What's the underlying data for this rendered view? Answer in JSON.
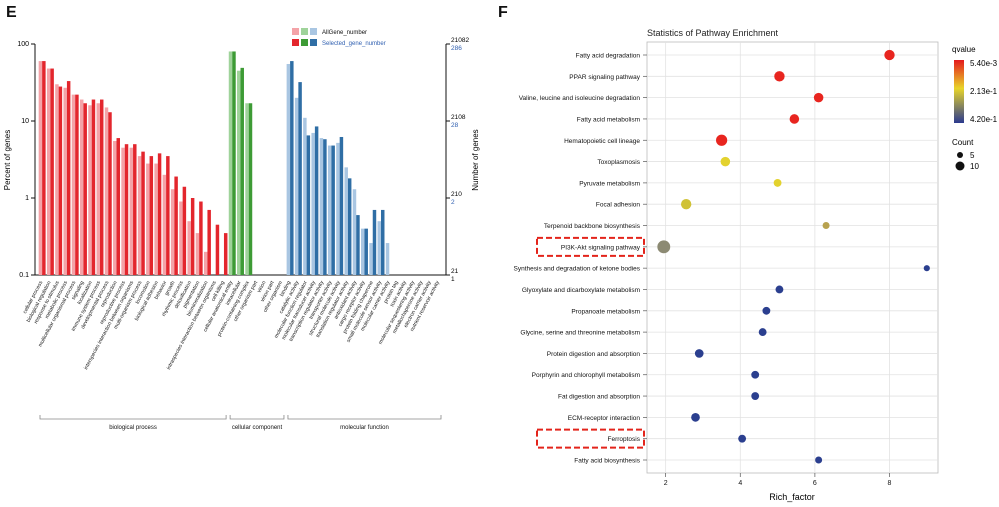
{
  "panel_labels": [
    "E",
    "F"
  ],
  "chart_data": [
    {
      "type": "bar",
      "title": "",
      "ylabel_left": "Percent of genes",
      "ylabel_right": "Number of genes",
      "y_scale": "log",
      "ylim": [
        0.1,
        100
      ],
      "yticks_left": [
        "100",
        "10",
        "1",
        "0.1"
      ],
      "yticks_right_all": [
        "21082",
        "2108",
        "210",
        "21"
      ],
      "yticks_right_selected": [
        "286",
        "28",
        "2",
        "1"
      ],
      "legend": {
        "all_label": "AllGene_number",
        "selected_label": "Selected_gene_number",
        "colors_all": [
          "#f4a3a8",
          "#9fd39a",
          "#a9c6e2"
        ],
        "colors_selected": [
          "#e3262d",
          "#3d9b35",
          "#2f6ea5"
        ]
      },
      "group_colors": {
        "biological process": {
          "all": "#f4a3a8",
          "selected": "#e3262d"
        },
        "cellular component": {
          "all": "#9fd39a",
          "selected": "#3d9b35"
        },
        "molecular function": {
          "all": "#a9c6e2",
          "selected": "#2f6ea5"
        }
      },
      "groups": [
        {
          "name": "biological process",
          "first": 0,
          "last": 22
        },
        {
          "name": "cellular component",
          "first": 23,
          "last": 29
        },
        {
          "name": "molecular function",
          "first": 30,
          "last": 48
        }
      ],
      "categories": [
        "cellular process",
        "biological regulation",
        "response to stimulus",
        "metabolic process",
        "multicellular organismal process",
        "signaling",
        "localization",
        "immune system process",
        "developmental process",
        "reproduction",
        "reproductive process",
        "interspecies interaction between organisms",
        "multi-organism process",
        "locomotion",
        "biological adhesion",
        "behavior",
        "growth",
        "rhythmic process",
        "detoxification",
        "pigmentation",
        "biomineralization",
        "intraspecies interaction between organisms",
        "cell killing",
        "cellular anatomical entity",
        "intracellular",
        "protein-containing complex",
        "other organism part",
        "virion",
        "virion part",
        "other organism",
        "binding",
        "catalytic activity",
        "molecular function regulator",
        "molecular transducer activity",
        "transcription regulator activity",
        "transporter activity",
        "structural molecule activity",
        "translation regulator activity",
        "antioxidant activity",
        "cargo receptor activity",
        "protein folding chaperone",
        "small molecule sensor activity",
        "molecular carrier activity",
        "protein tag",
        "toxin activity",
        "molecular sequestering activity",
        "metallochaperone activity",
        "electron carrier activity",
        "nutrient reservoir activity"
      ],
      "series": [
        {
          "name": "AllGene_number",
          "values": [
            60,
            48,
            30,
            27,
            22,
            19,
            16,
            17,
            15,
            5.5,
            4.5,
            4.5,
            3.5,
            2.8,
            2.8,
            2.0,
            1.3,
            0.9,
            0.5,
            0.35,
            0.2,
            0.1,
            0.1,
            80,
            45,
            17,
            0,
            0,
            0,
            0,
            55,
            20,
            11,
            7,
            6,
            4.8,
            5.2,
            2.5,
            1.3,
            0.4,
            0.26,
            0.5,
            0.26,
            0,
            0,
            0,
            0,
            0,
            0
          ]
        },
        {
          "name": "Selected_gene_number",
          "values": [
            60,
            48,
            28,
            33,
            22,
            17,
            19,
            19,
            13,
            6,
            5,
            5,
            4,
            3.5,
            3.8,
            3.5,
            1.9,
            1.4,
            1.0,
            0.9,
            0.7,
            0.45,
            0.35,
            80,
            49,
            17,
            0,
            0,
            0,
            0,
            60,
            32,
            6.5,
            8.5,
            5.8,
            4.8,
            6.2,
            1.8,
            0.6,
            0.4,
            0.7,
            0.7,
            0,
            0,
            0,
            0,
            0,
            0,
            0
          ]
        }
      ]
    },
    {
      "type": "scatter",
      "title": "Statistics of Pathway Enrichment",
      "xlabel": "Rich_factor",
      "ylabel": "",
      "xlim": [
        1.5,
        9.3
      ],
      "xticks": [
        2,
        4,
        6,
        8
      ],
      "grid": true,
      "legend_title_color": "qvalue",
      "color_ticks": [
        "5.40e-3",
        "2.13e-1",
        "4.20e-1"
      ],
      "legend_title_size": "Count",
      "size_ticks": [
        5,
        10
      ],
      "categories": [
        "Fatty acid degradation",
        "PPAR signaling pathway",
        "Valine, leucine and isoleucine degradation",
        "Fatty acid metabolism",
        "Hematopoietic cell lineage",
        "Toxoplasmosis",
        "Pyruvate metabolism",
        "Focal adhesion",
        "Terpenoid backbone biosynthesis",
        "PI3K-Akt signaling pathway",
        "Synthesis and degradation of ketone bodies",
        "Glyoxylate and dicarboxylate metabolism",
        "Propanoate metabolism",
        "Glycine, serine and threonine metabolism",
        "Protein digestion and absorption",
        "Porphyrin and chlorophyll metabolism",
        "Fat digestion and absorption",
        "ECM-receptor interaction",
        "Ferroptosis",
        "Fatty acid biosynthesis"
      ],
      "highlighted": [
        "PI3K-Akt signaling pathway",
        "Ferroptosis"
      ],
      "points": [
        {
          "pathway": "Fatty acid degradation",
          "rich_factor": 8.0,
          "count": 9,
          "color": "#e8251f"
        },
        {
          "pathway": "PPAR signaling pathway",
          "rich_factor": 5.05,
          "count": 9,
          "color": "#e8251f"
        },
        {
          "pathway": "Valine, leucine and isoleucine degradation",
          "rich_factor": 6.1,
          "count": 8,
          "color": "#e8251f"
        },
        {
          "pathway": "Fatty acid metabolism",
          "rich_factor": 5.45,
          "count": 8,
          "color": "#e8251f"
        },
        {
          "pathway": "Hematopoietic cell lineage",
          "rich_factor": 3.5,
          "count": 10,
          "color": "#e8251f"
        },
        {
          "pathway": "Toxoplasmosis",
          "rich_factor": 3.6,
          "count": 8,
          "color": "#e3d22e"
        },
        {
          "pathway": "Pyruvate metabolism",
          "rich_factor": 5.0,
          "count": 6,
          "color": "#e3d22e"
        },
        {
          "pathway": "Focal adhesion",
          "rich_factor": 2.55,
          "count": 9,
          "color": "#d0c235"
        },
        {
          "pathway": "Terpenoid backbone biosynthesis",
          "rich_factor": 6.3,
          "count": 5,
          "color": "#b8a24f"
        },
        {
          "pathway": "PI3K-Akt signaling pathway",
          "rich_factor": 1.95,
          "count": 12,
          "color": "#8c8a73"
        },
        {
          "pathway": "Synthesis and degradation of ketone bodies",
          "rich_factor": 9.0,
          "count": 4,
          "color": "#2b3f8f"
        },
        {
          "pathway": "Glyoxylate and dicarboxylate metabolism",
          "rich_factor": 5.05,
          "count": 6,
          "color": "#2b3f8f"
        },
        {
          "pathway": "Propanoate metabolism",
          "rich_factor": 4.7,
          "count": 6,
          "color": "#2b3f8f"
        },
        {
          "pathway": "Glycine, serine and threonine metabolism",
          "rich_factor": 4.6,
          "count": 6,
          "color": "#2b3f8f"
        },
        {
          "pathway": "Protein digestion and absorption",
          "rich_factor": 2.9,
          "count": 7,
          "color": "#2b3f8f"
        },
        {
          "pathway": "Porphyrin and chlorophyll metabolism",
          "rich_factor": 4.4,
          "count": 6,
          "color": "#2b3f8f"
        },
        {
          "pathway": "Fat digestion and absorption",
          "rich_factor": 4.4,
          "count": 6,
          "color": "#2b3f8f"
        },
        {
          "pathway": "ECM-receptor interaction",
          "rich_factor": 2.8,
          "count": 7,
          "color": "#2b3f8f"
        },
        {
          "pathway": "Ferroptosis",
          "rich_factor": 4.05,
          "count": 6,
          "color": "#2b3f8f"
        },
        {
          "pathway": "Fatty acid biosynthesis",
          "rich_factor": 6.1,
          "count": 5,
          "color": "#2b3f8f"
        }
      ]
    }
  ]
}
